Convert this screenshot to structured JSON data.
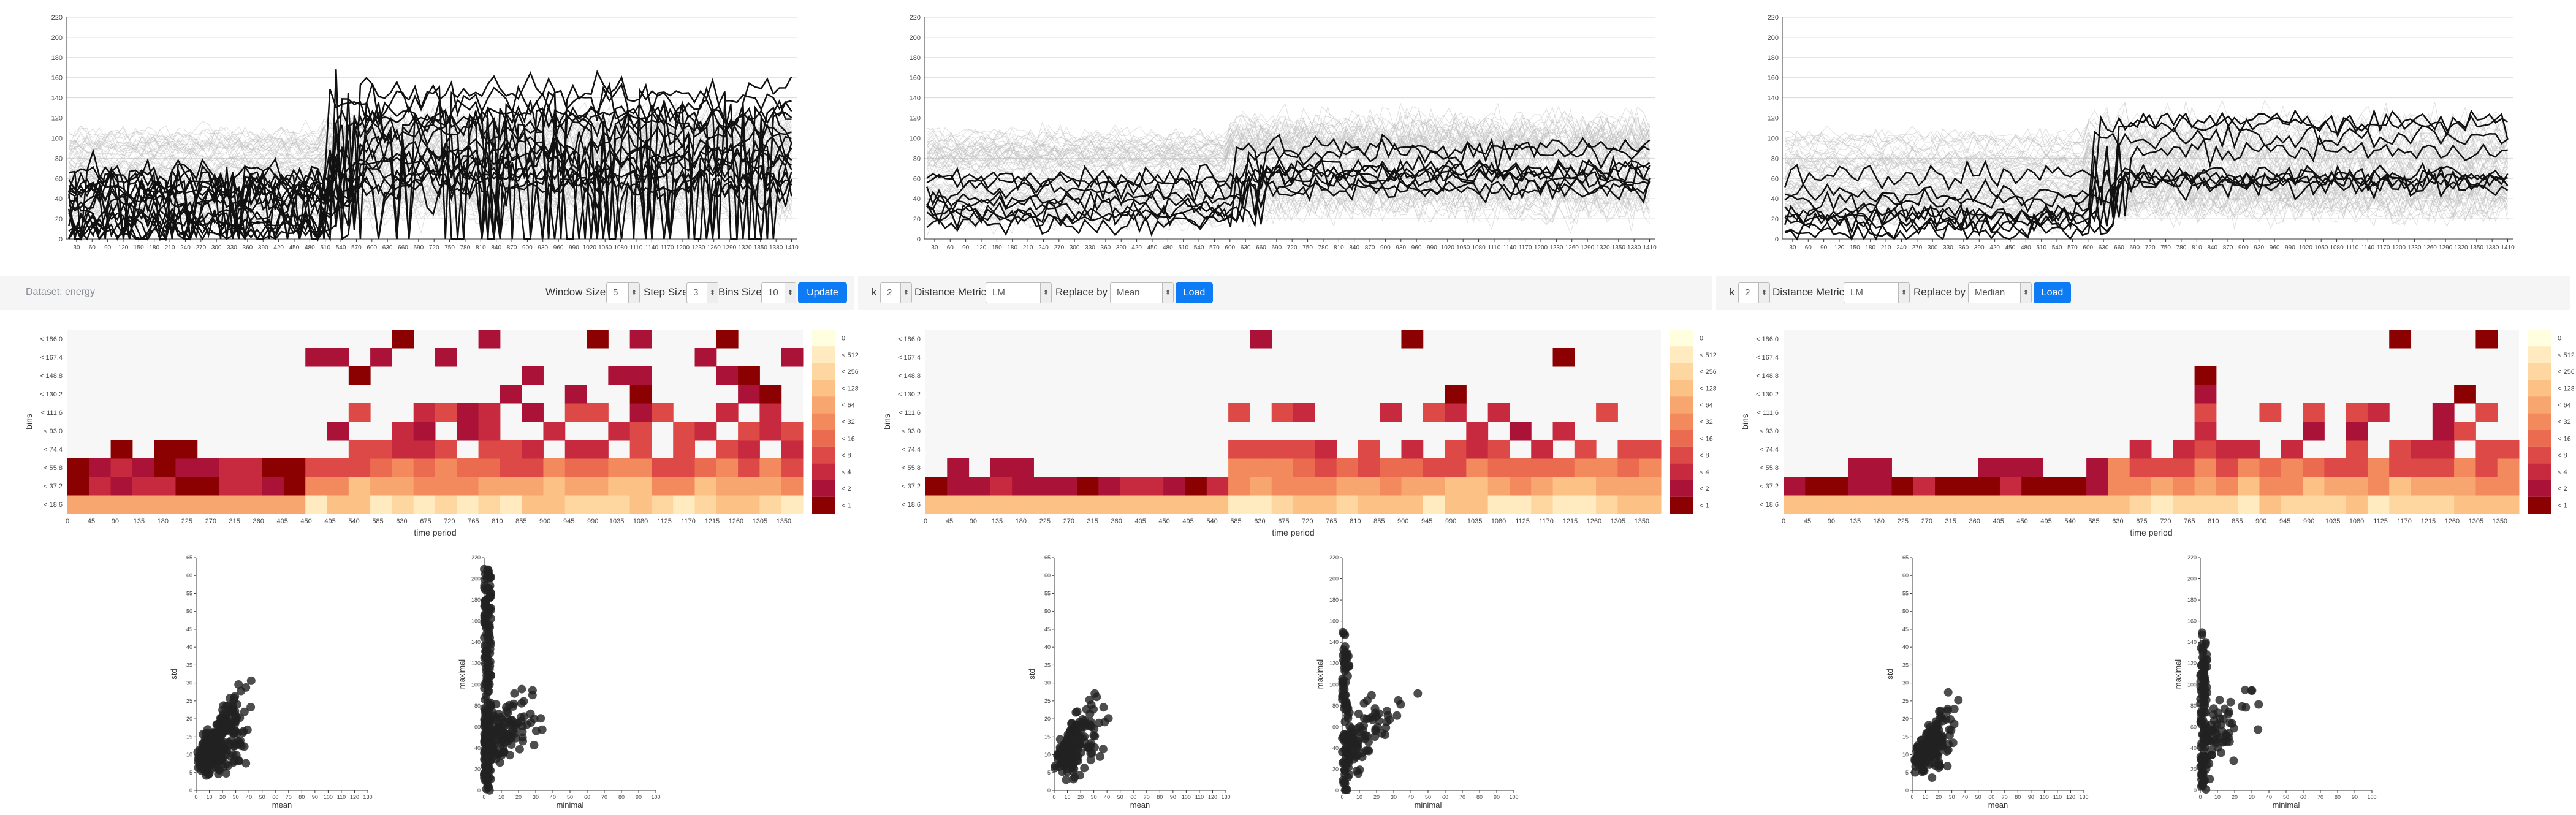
{
  "dataset_label": "Dataset: energy",
  "controls": {
    "window_size_label": "Window Size",
    "window_size_value": "5",
    "step_size_label": "Step Size",
    "step_size_value": "3",
    "bins_size_label": "Bins Size",
    "bins_size_value": "10",
    "update_label": "Update"
  },
  "panels": [
    {
      "k_label": "k",
      "k_value": "2",
      "metric_label": "Distance Metric",
      "metric_value": "LM",
      "replace_label": "Replace by",
      "replace_value": "Mean",
      "load_label": "Load"
    },
    {
      "k_label": "k",
      "k_value": "2",
      "metric_label": "Distance Metric",
      "metric_value": "LM",
      "replace_label": "Replace by",
      "replace_value": "Median",
      "load_label": "Load"
    }
  ],
  "colors": {
    "accent": "#0d7bf4",
    "heat_scale": [
      "#ffffe0",
      "#ffebbf",
      "#fed6a0",
      "#fcc185",
      "#f8a66f",
      "#f38a5d",
      "#ea6b50",
      "#dc4946",
      "#c72a3e",
      "#ab1238",
      "#8b0000"
    ]
  },
  "chart_data": [
    {
      "type": "line",
      "panel": 0,
      "ylim": [
        0,
        220
      ],
      "y_ticks": [
        0,
        20,
        40,
        60,
        80,
        100,
        120,
        140,
        160,
        180,
        200,
        220
      ],
      "x_ticks": [
        30,
        60,
        90,
        120,
        150,
        180,
        210,
        240,
        270,
        300,
        330,
        360,
        390,
        420,
        450,
        480,
        510,
        540,
        570,
        600,
        630,
        660,
        690,
        720,
        750,
        780,
        810,
        840,
        870,
        900,
        930,
        960,
        990,
        1020,
        1050,
        1080,
        1110,
        1140,
        1170,
        1200,
        1230,
        1260,
        1290,
        1320,
        1350,
        1380,
        1410
      ],
      "grid": true
    },
    {
      "type": "line",
      "panel": 1,
      "ylim": [
        0,
        220
      ],
      "y_ticks": [
        0,
        20,
        40,
        60,
        80,
        100,
        120,
        140,
        160,
        180,
        200,
        220
      ],
      "x_ticks": [
        30,
        60,
        90,
        120,
        150,
        180,
        210,
        240,
        270,
        300,
        330,
        360,
        390,
        420,
        450,
        480,
        510,
        540,
        570,
        600,
        630,
        660,
        690,
        720,
        750,
        780,
        810,
        840,
        870,
        900,
        930,
        960,
        990,
        1020,
        1050,
        1080,
        1110,
        1140,
        1170,
        1200,
        1230,
        1260,
        1290,
        1320,
        1350,
        1380,
        1410
      ],
      "grid": true
    },
    {
      "type": "line",
      "panel": 2,
      "ylim": [
        0,
        220
      ],
      "y_ticks": [
        0,
        20,
        40,
        60,
        80,
        100,
        120,
        140,
        160,
        180,
        200,
        220
      ],
      "x_ticks": [
        30,
        60,
        90,
        120,
        150,
        180,
        210,
        240,
        270,
        300,
        330,
        360,
        390,
        420,
        450,
        480,
        510,
        540,
        570,
        600,
        630,
        660,
        690,
        720,
        750,
        780,
        810,
        840,
        870,
        900,
        930,
        960,
        990,
        1020,
        1050,
        1080,
        1110,
        1140,
        1170,
        1200,
        1230,
        1260,
        1290,
        1320,
        1350,
        1380,
        1410
      ],
      "grid": true
    },
    {
      "type": "heatmap",
      "panel": 0,
      "xlabel": "time period",
      "ylabel": "bins",
      "y_ticks": [
        "< 18.6",
        "< 37.2",
        "< 55.8",
        "< 74.4",
        "< 93.0",
        "< 111.6",
        "< 130.2",
        "< 148.8",
        "< 167.4",
        "< 186.0"
      ],
      "x_ticks": [
        "0",
        "45",
        "90",
        "135",
        "180",
        "225",
        "270",
        "315",
        "360",
        "405",
        "450",
        "495",
        "540",
        "585",
        "630",
        "675",
        "720",
        "765",
        "810",
        "855",
        "900",
        "945",
        "990",
        "1035",
        "1080",
        "1125",
        "1170",
        "1215",
        "1260",
        "1305",
        "1350"
      ],
      "legend": [
        "0",
        "< 512",
        "< 256",
        "< 128",
        "< 64",
        "< 32",
        "< 16",
        "< 8",
        "< 4",
        "< 2",
        "< 1"
      ]
    },
    {
      "type": "heatmap",
      "panel": 1,
      "xlabel": "time period",
      "ylabel": "bins",
      "y_ticks": [
        "< 18.6",
        "< 37.2",
        "< 55.8",
        "< 74.4",
        "< 93.0",
        "< 111.6",
        "< 130.2",
        "< 148.8",
        "< 167.4",
        "< 186.0"
      ],
      "x_ticks": [
        "0",
        "45",
        "90",
        "135",
        "180",
        "225",
        "270",
        "315",
        "360",
        "405",
        "450",
        "495",
        "540",
        "585",
        "630",
        "675",
        "720",
        "765",
        "810",
        "855",
        "900",
        "945",
        "990",
        "1035",
        "1080",
        "1125",
        "1170",
        "1215",
        "1260",
        "1305",
        "1350"
      ],
      "legend": [
        "0",
        "< 512",
        "< 256",
        "< 128",
        "< 64",
        "< 32",
        "< 16",
        "< 8",
        "< 4",
        "< 2",
        "< 1"
      ]
    },
    {
      "type": "heatmap",
      "panel": 2,
      "xlabel": "time period",
      "ylabel": "bins",
      "y_ticks": [
        "< 18.6",
        "< 37.2",
        "< 55.8",
        "< 74.4",
        "< 93.0",
        "< 111.6",
        "< 130.2",
        "< 148.8",
        "< 167.4",
        "< 186.0"
      ],
      "x_ticks": [
        "0",
        "45",
        "90",
        "135",
        "180",
        "225",
        "270",
        "315",
        "360",
        "405",
        "450",
        "495",
        "540",
        "585",
        "630",
        "675",
        "720",
        "765",
        "810",
        "855",
        "900",
        "945",
        "990",
        "1035",
        "1080",
        "1125",
        "1170",
        "1215",
        "1260",
        "1305",
        "1350"
      ],
      "legend": [
        "0",
        "< 512",
        "< 256",
        "< 128",
        "< 64",
        "< 32",
        "< 16",
        "< 8",
        "< 4",
        "< 2",
        "< 1"
      ]
    },
    {
      "type": "scatter",
      "panel": 0,
      "xlabel": "mean",
      "ylabel": "std",
      "xlim": [
        0,
        130
      ],
      "ylim": [
        0,
        65
      ],
      "x_ticks": [
        0,
        10,
        20,
        30,
        40,
        50,
        60,
        70,
        80,
        90,
        100,
        110,
        120,
        130
      ],
      "y_ticks": [
        0,
        5,
        10,
        15,
        20,
        25,
        30,
        35,
        40,
        45,
        50,
        55,
        60,
        65
      ]
    },
    {
      "type": "scatter",
      "panel": 0,
      "xlabel": "minimal",
      "ylabel": "maximal",
      "xlim": [
        0,
        100
      ],
      "ylim": [
        0,
        220
      ],
      "x_ticks": [
        0,
        10,
        20,
        30,
        40,
        50,
        60,
        70,
        80,
        90,
        100
      ],
      "y_ticks": [
        0,
        20,
        40,
        60,
        80,
        100,
        120,
        140,
        160,
        180,
        200,
        220
      ]
    },
    {
      "type": "scatter",
      "panel": 1,
      "xlabel": "mean",
      "ylabel": "std",
      "xlim": [
        0,
        130
      ],
      "ylim": [
        0,
        65
      ],
      "x_ticks": [
        0,
        10,
        20,
        30,
        40,
        50,
        60,
        70,
        80,
        90,
        100,
        110,
        120,
        130
      ],
      "y_ticks": [
        0,
        5,
        10,
        15,
        20,
        25,
        30,
        35,
        40,
        45,
        50,
        55,
        60,
        65
      ]
    },
    {
      "type": "scatter",
      "panel": 1,
      "xlabel": "minimal",
      "ylabel": "maximal",
      "xlim": [
        0,
        100
      ],
      "ylim": [
        0,
        220
      ],
      "x_ticks": [
        0,
        10,
        20,
        30,
        40,
        50,
        60,
        70,
        80,
        90,
        100
      ],
      "y_ticks": [
        0,
        20,
        40,
        60,
        80,
        100,
        120,
        140,
        160,
        180,
        200,
        220
      ]
    },
    {
      "type": "scatter",
      "panel": 2,
      "xlabel": "mean",
      "ylabel": "std",
      "xlim": [
        0,
        130
      ],
      "ylim": [
        0,
        65
      ],
      "x_ticks": [
        0,
        10,
        20,
        30,
        40,
        50,
        60,
        70,
        80,
        90,
        100,
        110,
        120,
        130
      ],
      "y_ticks": [
        0,
        5,
        10,
        15,
        20,
        25,
        30,
        35,
        40,
        45,
        50,
        55,
        60,
        65
      ]
    },
    {
      "type": "scatter",
      "panel": 2,
      "xlabel": "minimal",
      "ylabel": "maximal",
      "xlim": [
        0,
        100
      ],
      "ylim": [
        0,
        220
      ],
      "x_ticks": [
        0,
        10,
        20,
        30,
        40,
        50,
        60,
        70,
        80,
        90,
        100
      ],
      "y_ticks": [
        0,
        20,
        40,
        60,
        80,
        100,
        120,
        140,
        160,
        180,
        200,
        220
      ]
    }
  ]
}
